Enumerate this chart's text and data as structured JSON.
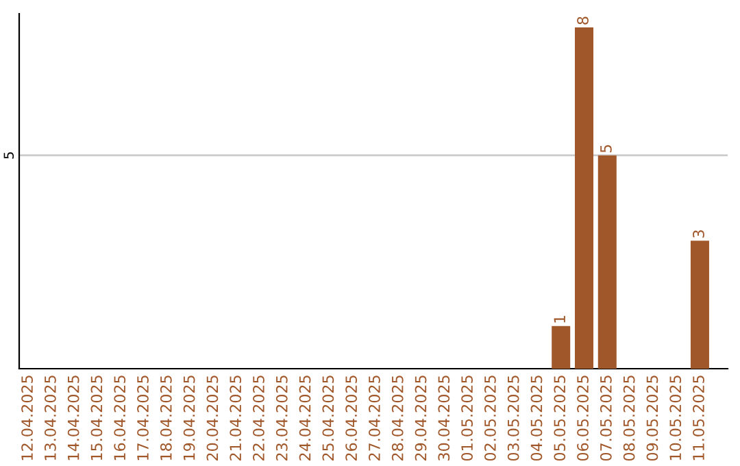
{
  "chart_data": {
    "type": "bar",
    "categories": [
      "12.04.2025",
      "13.04.2025",
      "14.04.2025",
      "15.04.2025",
      "16.04.2025",
      "17.04.2025",
      "18.04.2025",
      "19.04.2025",
      "20.04.2025",
      "21.04.2025",
      "22.04.2025",
      "23.04.2025",
      "24.04.2025",
      "25.04.2025",
      "26.04.2025",
      "27.04.2025",
      "28.04.2025",
      "29.04.2025",
      "30.04.2025",
      "01.05.2025",
      "02.05.2025",
      "03.05.2025",
      "04.05.2025",
      "05.05.2025",
      "06.05.2025",
      "07.05.2025",
      "08.05.2025",
      "09.05.2025",
      "10.05.2025",
      "11.05.2025"
    ],
    "values": [
      null,
      null,
      null,
      null,
      null,
      null,
      null,
      null,
      null,
      null,
      null,
      null,
      null,
      null,
      null,
      null,
      null,
      null,
      null,
      null,
      null,
      null,
      null,
      1,
      8,
      5,
      null,
      null,
      null,
      3
    ],
    "data_labels": true,
    "color": "#a0572a",
    "ref_lines": [
      {
        "axis": "y",
        "value": 5,
        "label": "5",
        "color": "#cccccc"
      }
    ]
  }
}
